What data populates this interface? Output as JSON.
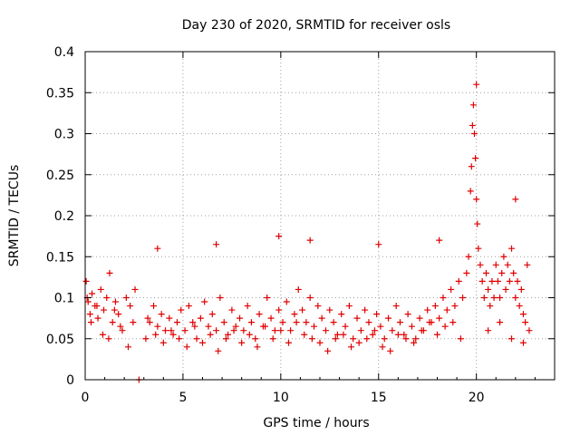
{
  "chart_data": {
    "type": "scatter",
    "title": "Day 230 of 2020, SRMTID for receiver osls",
    "xlabel": "GPS time / hours",
    "ylabel": "SRMTID / TECUs",
    "xlim": [
      0,
      24
    ],
    "ylim": [
      0,
      0.4
    ],
    "x_ticks": [
      0,
      5,
      10,
      15,
      20
    ],
    "y_ticks": [
      0,
      0.05,
      0.1,
      0.15,
      0.2,
      0.25,
      0.3,
      0.35,
      0.4
    ],
    "x_tick_labels": [
      "0",
      "5",
      "10",
      "15",
      "20"
    ],
    "y_tick_labels": [
      "0",
      "0.05",
      "0.1",
      "0.15",
      "0.2",
      "0.25",
      "0.3",
      "0.35",
      "0.4"
    ],
    "grid": true,
    "marker": "+",
    "color": "#e00000",
    "series": [
      {
        "name": "SRMTID",
        "x": [
          0.05,
          0.15,
          0.25,
          0.35,
          0.5,
          0.65,
          0.8,
          0.95,
          1.1,
          1.25,
          1.4,
          1.55,
          1.7,
          1.9,
          2.1,
          2.3,
          2.45,
          2.55,
          2.75,
          3.1,
          3.3,
          3.5,
          3.7,
          3.9,
          4.1,
          4.3,
          4.5,
          4.7,
          4.9,
          5.1,
          5.3,
          5.5,
          5.7,
          5.9,
          6.1,
          6.3,
          6.5,
          6.7,
          6.9,
          7.1,
          7.3,
          7.5,
          7.7,
          7.9,
          8.1,
          8.3,
          8.5,
          8.7,
          8.9,
          9.1,
          9.3,
          9.5,
          9.7,
          9.9,
          10.1,
          10.3,
          10.5,
          10.7,
          10.9,
          11.1,
          11.3,
          11.5,
          11.7,
          11.9,
          12.1,
          12.3,
          12.5,
          12.7,
          12.9,
          13.1,
          13.3,
          13.5,
          13.7,
          13.9,
          14.1,
          14.3,
          14.5,
          14.7,
          14.9,
          15.1,
          15.3,
          15.5,
          15.7,
          15.9,
          16.1,
          16.3,
          16.5,
          16.7,
          16.9,
          17.1,
          17.3,
          17.5,
          17.7,
          17.9,
          18.1,
          18.3,
          18.5,
          18.7,
          18.9,
          19.1,
          19.3,
          19.5,
          19.6,
          19.7,
          19.75,
          19.8,
          19.85,
          19.9,
          19.95,
          20.0,
          20.05,
          20.1,
          20.2,
          20.3,
          20.4,
          20.5,
          20.6,
          20.7,
          20.8,
          20.9,
          21.0,
          21.1,
          21.2,
          21.3,
          21.4,
          21.5,
          21.6,
          21.7,
          21.8,
          21.9,
          22.0,
          22.1,
          22.2,
          22.3,
          22.4,
          22.5,
          22.6,
          22.7,
          0.1,
          0.3,
          0.6,
          0.9,
          1.2,
          1.5,
          1.8,
          2.2,
          3.2,
          3.6,
          4.0,
          4.4,
          4.8,
          5.2,
          5.6,
          6.0,
          6.4,
          6.8,
          7.2,
          7.6,
          8.0,
          8.4,
          8.8,
          9.2,
          9.6,
          10.0,
          10.4,
          10.8,
          11.2,
          11.6,
          12.0,
          12.4,
          12.8,
          13.2,
          13.6,
          14.0,
          14.4,
          14.8,
          15.2,
          15.6,
          16.0,
          16.4,
          16.8,
          17.2,
          17.6,
          18.0,
          18.4,
          18.8,
          19.2,
          20.6,
          21.2,
          21.8,
          22.4,
          9.9,
          11.5,
          6.7,
          3.7,
          15.0,
          18.1,
          20.0,
          22.0
        ],
        "y": [
          0.12,
          0.095,
          0.08,
          0.105,
          0.09,
          0.075,
          0.11,
          0.085,
          0.1,
          0.13,
          0.07,
          0.095,
          0.08,
          0.06,
          0.1,
          0.09,
          0.07,
          0.11,
          0.0,
          0.05,
          0.07,
          0.09,
          0.065,
          0.08,
          0.06,
          0.075,
          0.055,
          0.07,
          0.085,
          0.06,
          0.09,
          0.07,
          0.05,
          0.075,
          0.095,
          0.065,
          0.08,
          0.06,
          0.1,
          0.07,
          0.055,
          0.085,
          0.065,
          0.075,
          0.06,
          0.09,
          0.07,
          0.05,
          0.08,
          0.065,
          0.1,
          0.075,
          0.06,
          0.085,
          0.07,
          0.095,
          0.06,
          0.08,
          0.11,
          0.085,
          0.07,
          0.1,
          0.065,
          0.09,
          0.075,
          0.06,
          0.085,
          0.07,
          0.055,
          0.08,
          0.065,
          0.09,
          0.05,
          0.075,
          0.06,
          0.085,
          0.07,
          0.055,
          0.08,
          0.065,
          0.05,
          0.075,
          0.06,
          0.09,
          0.07,
          0.055,
          0.08,
          0.065,
          0.05,
          0.075,
          0.06,
          0.085,
          0.07,
          0.09,
          0.075,
          0.1,
          0.085,
          0.11,
          0.09,
          0.12,
          0.1,
          0.13,
          0.15,
          0.23,
          0.26,
          0.31,
          0.335,
          0.3,
          0.27,
          0.22,
          0.19,
          0.16,
          0.14,
          0.12,
          0.1,
          0.13,
          0.11,
          0.09,
          0.12,
          0.1,
          0.14,
          0.12,
          0.1,
          0.13,
          0.15,
          0.11,
          0.14,
          0.12,
          0.16,
          0.13,
          0.1,
          0.12,
          0.09,
          0.11,
          0.08,
          0.07,
          0.14,
          0.06,
          0.1,
          0.07,
          0.09,
          0.055,
          0.05,
          0.085,
          0.065,
          0.04,
          0.075,
          0.055,
          0.045,
          0.06,
          0.05,
          0.04,
          0.065,
          0.045,
          0.055,
          0.035,
          0.05,
          0.06,
          0.045,
          0.055,
          0.04,
          0.065,
          0.05,
          0.06,
          0.045,
          0.07,
          0.055,
          0.05,
          0.045,
          0.035,
          0.05,
          0.055,
          0.04,
          0.045,
          0.05,
          0.06,
          0.04,
          0.035,
          0.055,
          0.05,
          0.045,
          0.06,
          0.07,
          0.055,
          0.065,
          0.07,
          0.05,
          0.06,
          0.07,
          0.05,
          0.045,
          0.175,
          0.17,
          0.165,
          0.16,
          0.165,
          0.17,
          0.36,
          0.22
        ]
      }
    ]
  }
}
